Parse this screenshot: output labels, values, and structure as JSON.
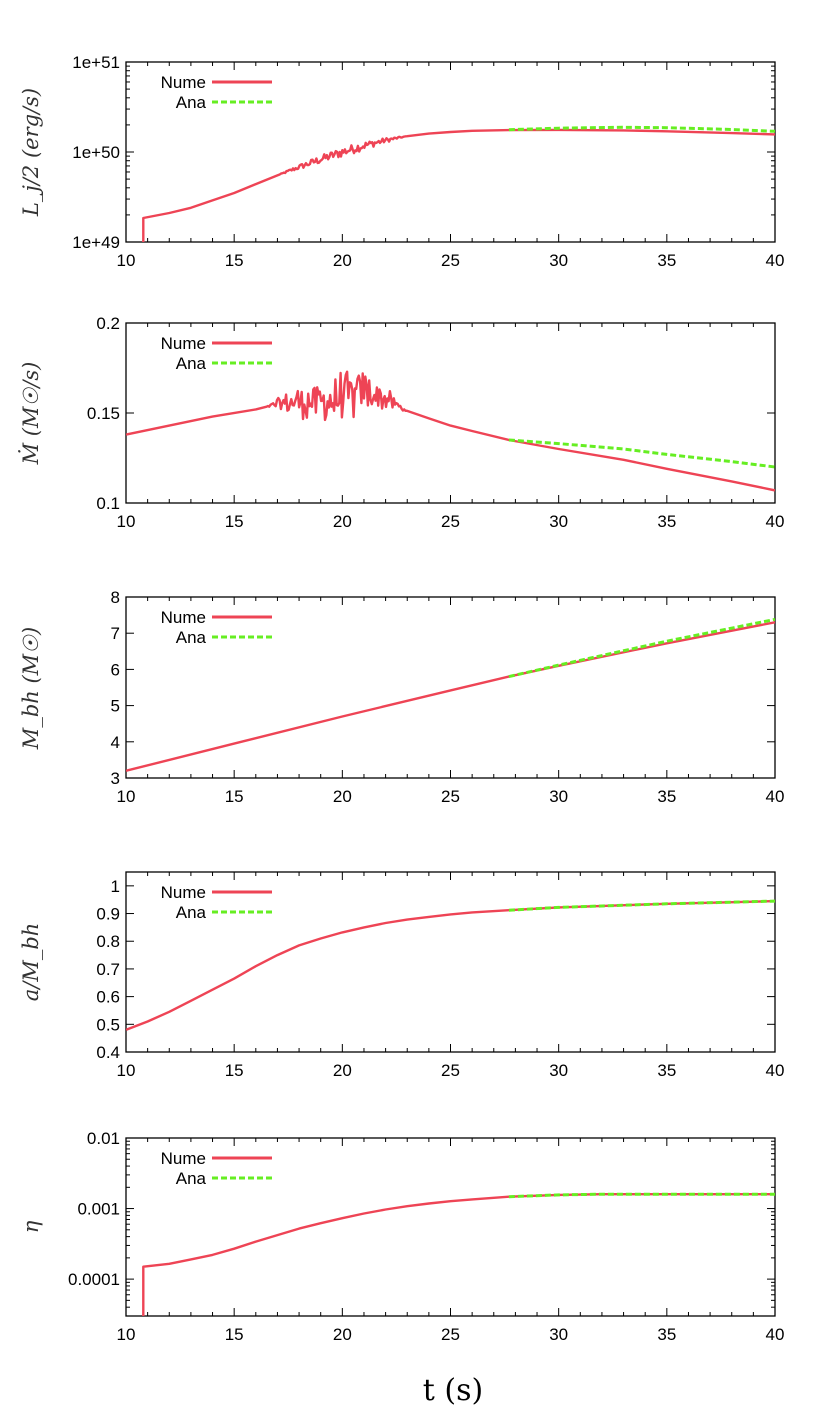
{
  "chart_data": [
    {
      "type": "line",
      "panel": "luminosity",
      "ylabel": "L_j/2 (erg/s)",
      "yscale": "log",
      "xlim": [
        10,
        40
      ],
      "ylim": [
        1e+49,
        1e+51
      ],
      "xticks": [
        "10",
        "15",
        "20",
        "25",
        "30",
        "35",
        "40"
      ],
      "yticks": [
        {
          "value": 1e+49,
          "label": "1e+49"
        },
        {
          "value": 1e+50,
          "label": "1e+50"
        },
        {
          "value": 1e+51,
          "label": "1e+51"
        }
      ],
      "legend": "top-left",
      "noise": {
        "x_range": [
          17.0,
          23.0
        ],
        "relative_amplitude": 0.12
      },
      "series": [
        {
          "name": "Nume",
          "color": "#ee4455",
          "dash": "solid",
          "x": [
            10.8,
            10.8,
            12,
            13,
            14,
            15,
            16,
            17,
            18,
            19,
            20,
            21,
            22,
            23,
            24,
            25,
            26,
            27.7,
            30,
            33,
            35,
            38,
            40
          ],
          "y": [
            1e+49,
            1.85e+49,
            2.1e+49,
            2.4e+49,
            2.9e+49,
            3.5e+49,
            4.4e+49,
            5.5e+49,
            6.8e+49,
            8.3e+49,
            1e+50,
            1.18e+50,
            1.35e+50,
            1.5e+50,
            1.6e+50,
            1.67e+50,
            1.72e+50,
            1.75e+50,
            1.76e+50,
            1.74e+50,
            1.7e+50,
            1.62e+50,
            1.57e+50
          ]
        },
        {
          "name": "Ana",
          "color": "#66ee22",
          "dash": "dashed",
          "x": [
            27.7,
            30,
            33,
            35,
            38,
            40
          ],
          "y": [
            1.77e+50,
            1.84e+50,
            1.88e+50,
            1.86e+50,
            1.78e+50,
            1.7e+50
          ]
        }
      ]
    },
    {
      "type": "line",
      "panel": "accretion-rate",
      "ylabel": "Ṁ (M☉/s)",
      "yscale": "linear",
      "xlim": [
        10,
        40
      ],
      "ylim": [
        0.1,
        0.2
      ],
      "xticks": [
        "10",
        "15",
        "20",
        "25",
        "30",
        "35",
        "40"
      ],
      "yticks": [
        {
          "value": 0.1,
          "label": "0.1"
        },
        {
          "value": 0.15,
          "label": "0.15"
        },
        {
          "value": 0.2,
          "label": "0.2"
        }
      ],
      "legend": "top-left",
      "noise": {
        "x_range": [
          16.5,
          23.0
        ],
        "amplitude": 0.012
      },
      "series": [
        {
          "name": "Nume",
          "color": "#ee4455",
          "dash": "solid",
          "x": [
            10,
            12,
            14,
            16,
            17,
            18,
            19,
            20,
            21,
            22,
            23,
            24,
            25,
            26,
            27.7,
            30,
            33,
            35,
            38,
            40
          ],
          "y": [
            0.138,
            0.143,
            0.148,
            0.152,
            0.155,
            0.156,
            0.156,
            0.158,
            0.162,
            0.158,
            0.151,
            0.147,
            0.143,
            0.14,
            0.135,
            0.13,
            0.124,
            0.119,
            0.112,
            0.107
          ]
        },
        {
          "name": "Ana",
          "color": "#66ee22",
          "dash": "dashed",
          "x": [
            27.7,
            30,
            33,
            35,
            38,
            40
          ],
          "y": [
            0.135,
            0.133,
            0.13,
            0.127,
            0.123,
            0.12
          ]
        }
      ]
    },
    {
      "type": "line",
      "panel": "black-hole-mass",
      "ylabel": "M_bh (M☉)",
      "yscale": "linear",
      "xlim": [
        10,
        40
      ],
      "ylim": [
        3,
        8
      ],
      "xticks": [
        "10",
        "15",
        "20",
        "25",
        "30",
        "35",
        "40"
      ],
      "yticks": [
        {
          "value": 3,
          "label": "3"
        },
        {
          "value": 4,
          "label": "4"
        },
        {
          "value": 5,
          "label": "5"
        },
        {
          "value": 6,
          "label": "6"
        },
        {
          "value": 7,
          "label": "7"
        },
        {
          "value": 8,
          "label": "8"
        }
      ],
      "legend": "top-left",
      "series": [
        {
          "name": "Nume",
          "color": "#ee4455",
          "dash": "solid",
          "x": [
            10,
            15,
            20,
            25,
            27.7,
            30,
            35,
            40
          ],
          "y": [
            3.2,
            3.95,
            4.7,
            5.42,
            5.8,
            6.1,
            6.72,
            7.3
          ]
        },
        {
          "name": "Ana",
          "color": "#66ee22",
          "dash": "dashed",
          "x": [
            27.7,
            30,
            35,
            40
          ],
          "y": [
            5.8,
            6.12,
            6.78,
            7.38
          ]
        }
      ]
    },
    {
      "type": "line",
      "panel": "spin",
      "ylabel": "a/M_bh",
      "yscale": "linear",
      "xlim": [
        10,
        40
      ],
      "ylim": [
        0.4,
        1.05
      ],
      "xticks": [
        "10",
        "15",
        "20",
        "25",
        "30",
        "35",
        "40"
      ],
      "yticks": [
        {
          "value": 0.4,
          "label": "0.4"
        },
        {
          "value": 0.5,
          "label": "0.5"
        },
        {
          "value": 0.6,
          "label": "0.6"
        },
        {
          "value": 0.7,
          "label": "0.7"
        },
        {
          "value": 0.8,
          "label": "0.8"
        },
        {
          "value": 0.9,
          "label": "0.9"
        },
        {
          "value": 1.0,
          "label": "1"
        }
      ],
      "legend": "top-left",
      "series": [
        {
          "name": "Nume",
          "color": "#ee4455",
          "dash": "solid",
          "x": [
            10,
            11,
            12,
            13,
            14,
            15,
            16,
            17,
            18,
            19,
            20,
            21,
            22,
            23,
            24,
            25,
            26,
            27.7,
            30,
            35,
            40
          ],
          "y": [
            0.48,
            0.51,
            0.545,
            0.585,
            0.625,
            0.665,
            0.71,
            0.75,
            0.785,
            0.81,
            0.832,
            0.85,
            0.866,
            0.878,
            0.888,
            0.897,
            0.904,
            0.912,
            0.922,
            0.935,
            0.945
          ]
        },
        {
          "name": "Ana",
          "color": "#66ee22",
          "dash": "dashed",
          "x": [
            27.7,
            30,
            35,
            40
          ],
          "y": [
            0.912,
            0.922,
            0.935,
            0.945
          ]
        }
      ]
    },
    {
      "type": "line",
      "panel": "efficiency",
      "ylabel": "η",
      "xlabel": "t (s)",
      "yscale": "log",
      "xlim": [
        10,
        40
      ],
      "ylim": [
        3e-05,
        0.01
      ],
      "xticks": [
        "10",
        "15",
        "20",
        "25",
        "30",
        "35",
        "40"
      ],
      "yticks": [
        {
          "value": 0.0001,
          "label": "0.0001"
        },
        {
          "value": 0.001,
          "label": "0.001"
        },
        {
          "value": 0.01,
          "label": "0.01"
        }
      ],
      "legend": "top-left",
      "series": [
        {
          "name": "Nume",
          "color": "#ee4455",
          "dash": "solid",
          "x": [
            10.8,
            10.8,
            12,
            13,
            14,
            15,
            16,
            17,
            18,
            19,
            20,
            21,
            22,
            23,
            24,
            25,
            26,
            27.7,
            30,
            32,
            35,
            40
          ],
          "y": [
            3e-05,
            0.00015,
            0.000165,
            0.00019,
            0.00022,
            0.00027,
            0.00034,
            0.00042,
            0.00052,
            0.00062,
            0.00073,
            0.00085,
            0.00097,
            0.00108,
            0.00118,
            0.00127,
            0.00135,
            0.00147,
            0.00156,
            0.0016,
            0.0016,
            0.0016
          ]
        },
        {
          "name": "Ana",
          "color": "#66ee22",
          "dash": "dashed",
          "x": [
            27.7,
            30,
            32,
            35,
            40
          ],
          "y": [
            0.00147,
            0.00156,
            0.0016,
            0.0016,
            0.0016
          ]
        }
      ]
    }
  ],
  "figure": {
    "xlabel": "t (s)",
    "legend_labels": [
      "Nume",
      "Ana"
    ],
    "panel_ylabels": [
      "L_j/2 (erg/s)",
      "Ṁ (M☉/s)",
      "M_bh (M☉)",
      "a/M_bh",
      "η"
    ]
  }
}
